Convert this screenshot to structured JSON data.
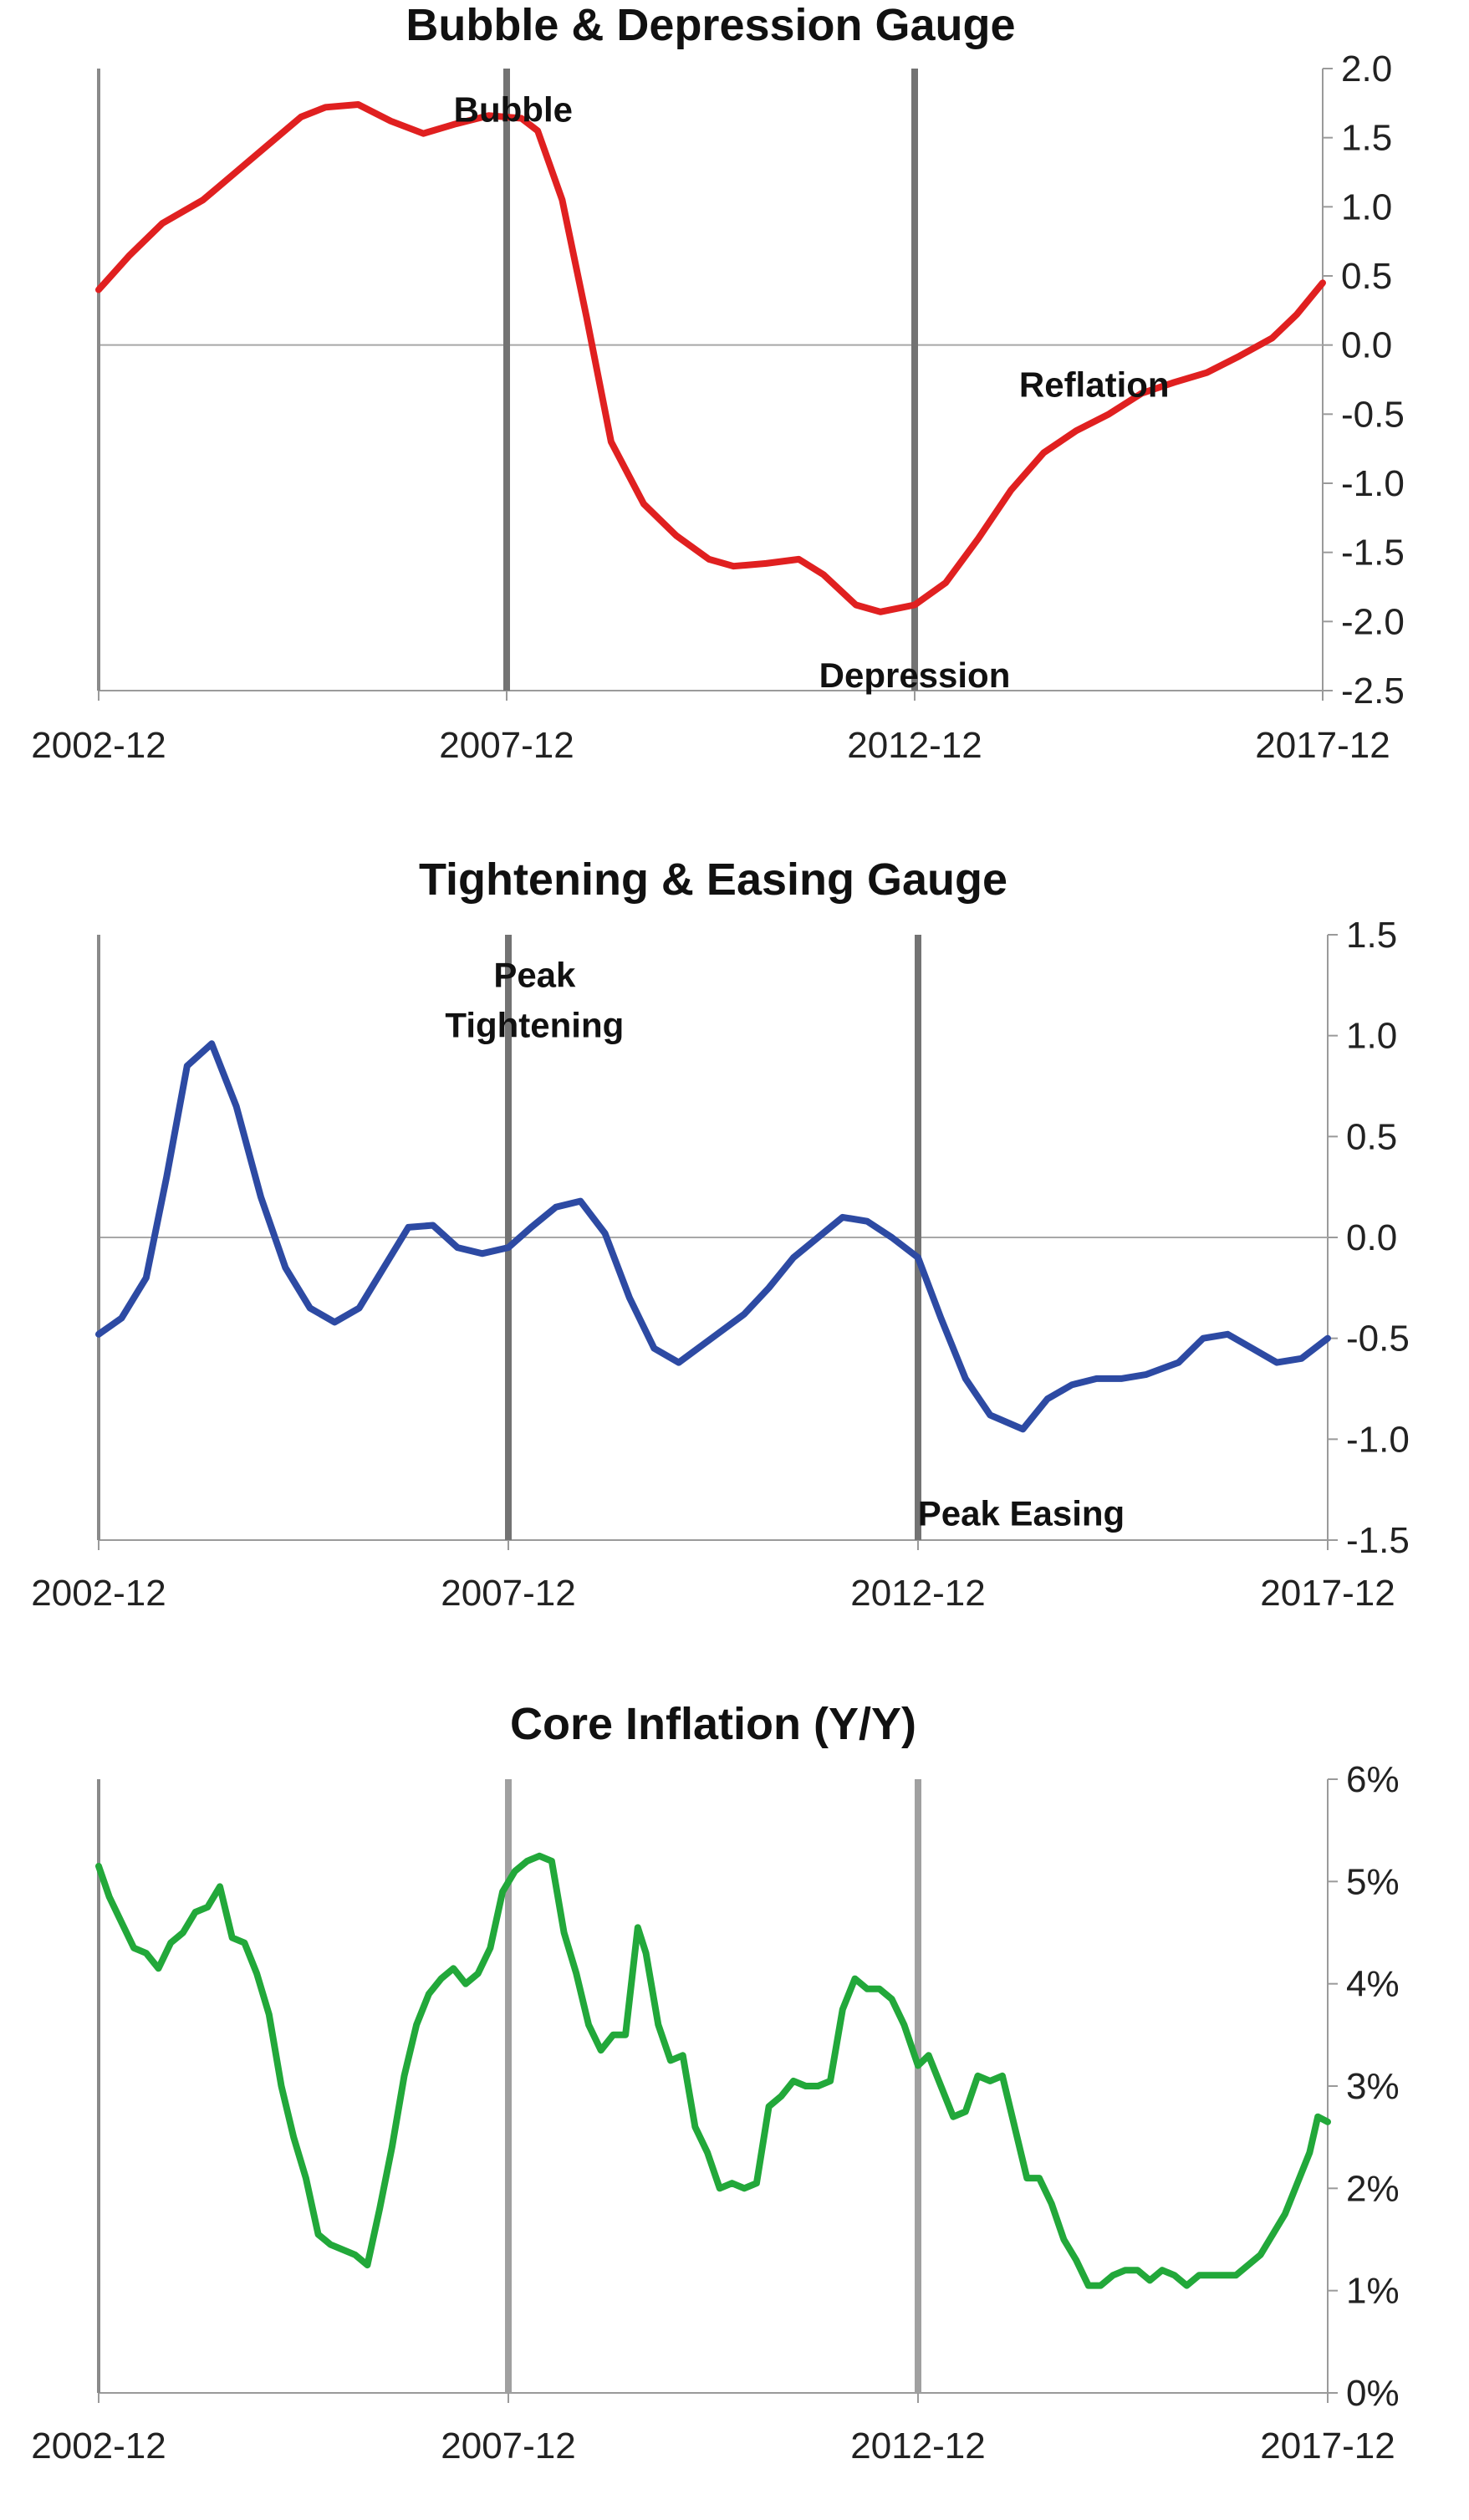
{
  "chart_data": [
    {
      "type": "line",
      "title": "Bubble & Depression Gauge",
      "xlabel": "",
      "ylabel": "",
      "xlim": [
        2002.92,
        2017.92
      ],
      "ylim": [
        -2.5,
        2.0
      ],
      "x_ticks": [
        2002.92,
        2007.92,
        2012.92,
        2017.92
      ],
      "x_tick_labels": [
        "2002-12",
        "2007-12",
        "2012-12",
        "2017-12"
      ],
      "y_ticks": [
        2.0,
        1.5,
        1.0,
        0.5,
        0.0,
        -0.5,
        -1.0,
        -1.5,
        -2.0,
        -2.5
      ],
      "y_tick_labels": [
        "2.0",
        "1.5",
        "1.0",
        "0.5",
        "0.0",
        "-0.5",
        "-1.0",
        "-1.5",
        "-2.0",
        "-2.5"
      ],
      "vlines": [
        2002.92,
        2007.92,
        2012.92
      ],
      "zero_line": true,
      "color": "#e02020",
      "series": [
        {
          "x": [
            2002.92,
            2003.3,
            2003.7,
            2004.2,
            2004.6,
            2005.0,
            2005.4,
            2005.7,
            2006.1,
            2006.5,
            2006.9,
            2007.3,
            2007.7,
            2008.1,
            2008.3,
            2008.6,
            2008.9,
            2009.2,
            2009.6,
            2010.0,
            2010.4,
            2010.7,
            2011.1,
            2011.5,
            2011.8,
            2012.2,
            2012.5,
            2012.92,
            2013.3,
            2013.7,
            2014.1,
            2014.5,
            2014.9,
            2015.3,
            2015.7,
            2016.1,
            2016.5,
            2016.9,
            2017.3,
            2017.6,
            2017.92
          ],
          "y": [
            0.4,
            0.65,
            0.88,
            1.05,
            1.25,
            1.45,
            1.65,
            1.72,
            1.74,
            1.62,
            1.53,
            1.6,
            1.66,
            1.64,
            1.55,
            1.05,
            0.2,
            -0.7,
            -1.15,
            -1.38,
            -1.55,
            -1.6,
            -1.58,
            -1.55,
            -1.66,
            -1.88,
            -1.93,
            -1.88,
            -1.72,
            -1.4,
            -1.05,
            -0.78,
            -0.62,
            -0.5,
            -0.35,
            -0.27,
            -0.2,
            -0.08,
            0.05,
            0.22,
            0.45
          ]
        }
      ],
      "annotations": [
        {
          "text": "Bubble",
          "x": 2008.0,
          "y": 1.7
        },
        {
          "text": "Reflation",
          "x": 2015.12,
          "y": -0.29
        },
        {
          "text": "Depression",
          "x": 2012.92,
          "y": -2.39
        }
      ]
    },
    {
      "type": "line",
      "title": "Tightening & Easing Gauge",
      "xlabel": "",
      "ylabel": "",
      "xlim": [
        2002.92,
        2017.92
      ],
      "ylim": [
        -1.5,
        1.5
      ],
      "x_ticks": [
        2002.92,
        2007.92,
        2012.92,
        2017.92
      ],
      "x_tick_labels": [
        "2002-12",
        "2007-12",
        "2012-12",
        "2017-12"
      ],
      "y_ticks": [
        1.5,
        1.0,
        0.5,
        0.0,
        -0.5,
        -1.0,
        -1.5
      ],
      "y_tick_labels": [
        "1.5",
        "1.0",
        "0.5",
        "0.0",
        "-0.5",
        "-1.0",
        "-1.5"
      ],
      "vlines": [
        2002.92,
        2007.92,
        2012.92
      ],
      "zero_line": true,
      "color": "#2d4aa3",
      "series": [
        {
          "x": [
            2002.92,
            2003.2,
            2003.5,
            2003.75,
            2004.0,
            2004.3,
            2004.6,
            2004.9,
            2005.2,
            2005.5,
            2005.8,
            2006.1,
            2006.4,
            2006.7,
            2007.0,
            2007.3,
            2007.6,
            2007.92,
            2008.2,
            2008.5,
            2008.8,
            2009.1,
            2009.4,
            2009.7,
            2010.0,
            2010.4,
            2010.8,
            2011.1,
            2011.4,
            2011.7,
            2012.0,
            2012.3,
            2012.6,
            2012.92,
            2013.2,
            2013.5,
            2013.8,
            2014.2,
            2014.5,
            2014.8,
            2015.1,
            2015.4,
            2015.7,
            2016.1,
            2016.4,
            2016.7,
            2017.0,
            2017.3,
            2017.6,
            2017.92
          ],
          "y": [
            -0.48,
            -0.4,
            -0.2,
            0.3,
            0.85,
            0.96,
            0.65,
            0.2,
            -0.15,
            -0.35,
            -0.42,
            -0.35,
            -0.15,
            0.05,
            0.06,
            -0.05,
            -0.08,
            -0.05,
            0.05,
            0.15,
            0.18,
            0.02,
            -0.3,
            -0.55,
            -0.62,
            -0.5,
            -0.38,
            -0.25,
            -0.1,
            0.0,
            0.1,
            0.08,
            0.0,
            -0.1,
            -0.4,
            -0.7,
            -0.88,
            -0.95,
            -0.8,
            -0.73,
            -0.7,
            -0.7,
            -0.68,
            -0.62,
            -0.5,
            -0.48,
            -0.55,
            -0.62,
            -0.6,
            -0.5
          ]
        }
      ],
      "annotations": [
        {
          "text": "Peak",
          "x": 2008.24,
          "y": 1.3
        },
        {
          "text": "Tightening",
          "x": 2008.24,
          "y": 1.05
        },
        {
          "text": "Peak Easing",
          "x": 2014.18,
          "y": -1.37
        }
      ]
    },
    {
      "type": "line",
      "title": "Core Inflation (Y/Y)",
      "xlabel": "",
      "ylabel": "",
      "xlim": [
        2002.92,
        2017.92
      ],
      "ylim": [
        0,
        6
      ],
      "x_ticks": [
        2002.92,
        2007.92,
        2012.92,
        2017.92
      ],
      "x_tick_labels": [
        "2002-12",
        "2007-12",
        "2012-12",
        "2017-12"
      ],
      "y_ticks": [
        6,
        5,
        4,
        3,
        2,
        1,
        0
      ],
      "y_tick_labels": [
        "6%",
        "5%",
        "4%",
        "3%",
        "2%",
        "1%",
        "0%"
      ],
      "vlines": [
        2002.92,
        2007.92,
        2012.92
      ],
      "zero_line": false,
      "color": "#22a83a",
      "series": [
        {
          "x": [
            2002.92,
            2003.05,
            2003.2,
            2003.35,
            2003.5,
            2003.65,
            2003.8,
            2003.95,
            2004.1,
            2004.25,
            2004.4,
            2004.55,
            2004.7,
            2004.85,
            2005.0,
            2005.15,
            2005.3,
            2005.45,
            2005.6,
            2005.75,
            2005.9,
            2006.05,
            2006.2,
            2006.35,
            2006.5,
            2006.65,
            2006.8,
            2006.95,
            2007.1,
            2007.25,
            2007.4,
            2007.55,
            2007.7,
            2007.85,
            2008.0,
            2008.15,
            2008.3,
            2008.45,
            2008.6,
            2008.75,
            2008.9,
            2009.05,
            2009.2,
            2009.35,
            2009.5,
            2009.6,
            2009.75,
            2009.9,
            2010.05,
            2010.2,
            2010.35,
            2010.5,
            2010.65,
            2010.8,
            2010.95,
            2011.1,
            2011.25,
            2011.4,
            2011.55,
            2011.7,
            2011.85,
            2012.0,
            2012.15,
            2012.3,
            2012.45,
            2012.6,
            2012.75,
            2012.92,
            2013.05,
            2013.2,
            2013.35,
            2013.5,
            2013.65,
            2013.8,
            2013.95,
            2014.1,
            2014.25,
            2014.4,
            2014.55,
            2014.7,
            2014.85,
            2015.0,
            2015.15,
            2015.3,
            2015.45,
            2015.6,
            2015.75,
            2015.9,
            2016.05,
            2016.2,
            2016.35,
            2016.5,
            2016.65,
            2016.8,
            2016.95,
            2017.1,
            2017.25,
            2017.4,
            2017.55,
            2017.7,
            2017.8,
            2017.92
          ],
          "y": [
            5.15,
            4.85,
            4.6,
            4.35,
            4.3,
            4.15,
            4.4,
            4.5,
            4.7,
            4.75,
            4.95,
            4.45,
            4.4,
            4.1,
            3.7,
            3.0,
            2.5,
            2.1,
            1.55,
            1.45,
            1.4,
            1.35,
            1.25,
            1.8,
            2.4,
            3.1,
            3.6,
            3.9,
            4.05,
            4.15,
            4.0,
            4.1,
            4.35,
            4.9,
            5.1,
            5.2,
            5.25,
            5.2,
            4.5,
            4.1,
            3.6,
            3.35,
            3.5,
            3.5,
            4.55,
            4.3,
            3.6,
            3.25,
            3.3,
            2.6,
            2.35,
            2.0,
            2.05,
            2.0,
            2.05,
            2.8,
            2.9,
            3.05,
            3.0,
            3.0,
            3.05,
            3.75,
            4.05,
            3.95,
            3.95,
            3.85,
            3.6,
            3.2,
            3.3,
            3.0,
            2.7,
            2.75,
            3.1,
            3.05,
            3.1,
            2.6,
            2.1,
            2.1,
            1.85,
            1.5,
            1.3,
            1.05,
            1.05,
            1.15,
            1.2,
            1.2,
            1.1,
            1.2,
            1.15,
            1.05,
            1.15,
            1.15,
            1.15,
            1.15,
            1.25,
            1.35,
            1.55,
            1.75,
            2.05,
            2.35,
            2.7,
            2.65
          ]
        }
      ],
      "annotations": []
    }
  ]
}
